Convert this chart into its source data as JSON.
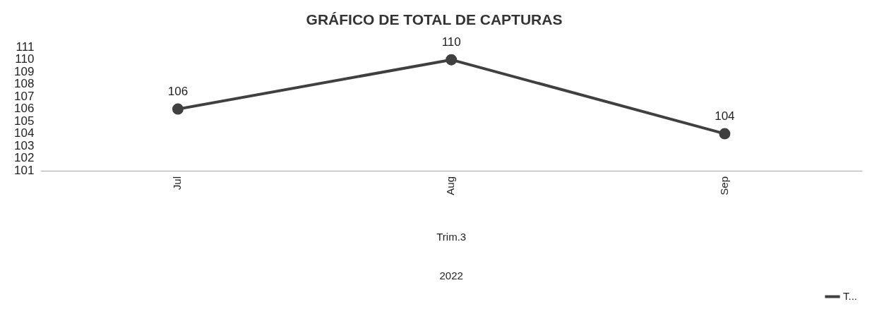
{
  "chart_data": {
    "type": "line",
    "title": "GRÁFICO DE TOTAL DE CAPTURAS",
    "xlabel": "Trim.3",
    "annotations": [
      "2022"
    ],
    "categories": [
      "Jul",
      "Aug",
      "Sep"
    ],
    "series": [
      {
        "name": "T...",
        "color": "#404040",
        "values": [
          106,
          110,
          104
        ]
      }
    ],
    "ylim": [
      101,
      111
    ],
    "yticks": [
      101,
      102,
      103,
      104,
      105,
      106,
      107,
      108,
      109,
      110,
      111
    ],
    "grid": false,
    "legend": "bottom right",
    "marker": "circle",
    "line_style": "solid",
    "data_labels": true
  }
}
